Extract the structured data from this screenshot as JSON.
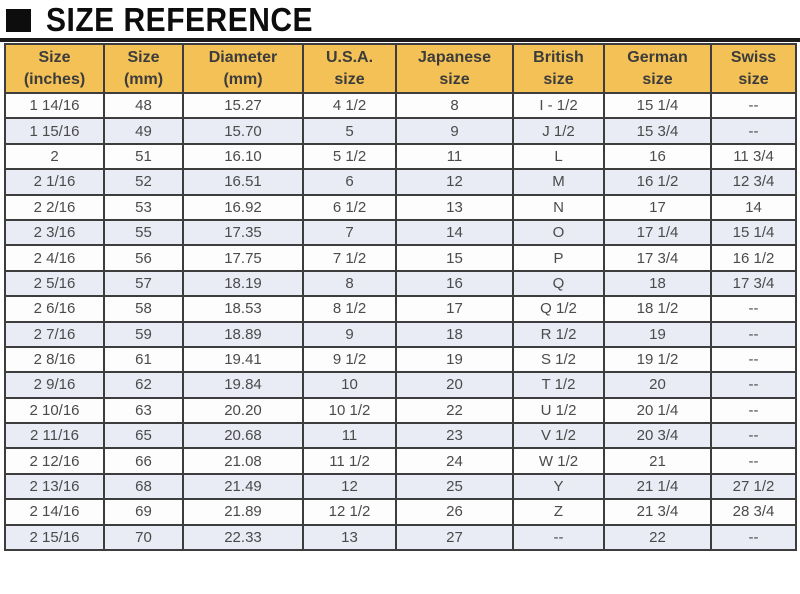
{
  "page": {
    "title": "SIZE REFERENCE"
  },
  "colors": {
    "header_bg": "#f3c155",
    "row_alt_bg": "#e9ebf5",
    "row_bg": "#fdfdfd",
    "border": "#3d3d3d",
    "title_text": "#0d0d0d",
    "cell_text": "#4b4b4b"
  },
  "chart_data": {
    "type": "table",
    "title": "SIZE REFERENCE",
    "columns": [
      "Size\n(inches)",
      "Size\n(mm)",
      "Diameter\n(mm)",
      "U.S.A.\nsize",
      "Japanese\nsize",
      "British\nsize",
      "German\nsize",
      "Swiss\nsize"
    ],
    "rows": [
      [
        "1 14/16",
        "48",
        "15.27",
        "4 1/2",
        "8",
        "I - 1/2",
        "15 1/4",
        "--"
      ],
      [
        "1 15/16",
        "49",
        "15.70",
        "5",
        "9",
        "J 1/2",
        "15 3/4",
        "--"
      ],
      [
        "2",
        "51",
        "16.10",
        "5 1/2",
        "11",
        "L",
        "16",
        "11 3/4"
      ],
      [
        "2 1/16",
        "52",
        "16.51",
        "6",
        "12",
        "M",
        "16 1/2",
        "12 3/4"
      ],
      [
        "2 2/16",
        "53",
        "16.92",
        "6 1/2",
        "13",
        "N",
        "17",
        "14"
      ],
      [
        "2 3/16",
        "55",
        "17.35",
        "7",
        "14",
        "O",
        "17 1/4",
        "15 1/4"
      ],
      [
        "2 4/16",
        "56",
        "17.75",
        "7 1/2",
        "15",
        "P",
        "17 3/4",
        "16 1/2"
      ],
      [
        "2 5/16",
        "57",
        "18.19",
        "8",
        "16",
        "Q",
        "18",
        "17 3/4"
      ],
      [
        "2 6/16",
        "58",
        "18.53",
        "8 1/2",
        "17",
        "Q 1/2",
        "18 1/2",
        "--"
      ],
      [
        "2 7/16",
        "59",
        "18.89",
        "9",
        "18",
        "R 1/2",
        "19",
        "--"
      ],
      [
        "2 8/16",
        "61",
        "19.41",
        "9 1/2",
        "19",
        "S 1/2",
        "19 1/2",
        "--"
      ],
      [
        "2 9/16",
        "62",
        "19.84",
        "10",
        "20",
        "T 1/2",
        "20",
        "--"
      ],
      [
        "2 10/16",
        "63",
        "20.20",
        "10 1/2",
        "22",
        "U 1/2",
        "20 1/4",
        "--"
      ],
      [
        "2 11/16",
        "65",
        "20.68",
        "11",
        "23",
        "V 1/2",
        "20 3/4",
        "--"
      ],
      [
        "2 12/16",
        "66",
        "21.08",
        "11 1/2",
        "24",
        "W 1/2",
        "21",
        "--"
      ],
      [
        "2 13/16",
        "68",
        "21.49",
        "12",
        "25",
        "Y",
        "21 1/4",
        "27 1/2"
      ],
      [
        "2 14/16",
        "69",
        "21.89",
        "12 1/2",
        "26",
        "Z",
        "21 3/4",
        "28 3/4"
      ],
      [
        "2 15/16",
        "70",
        "22.33",
        "13",
        "27",
        "--",
        "22",
        "--"
      ]
    ]
  }
}
